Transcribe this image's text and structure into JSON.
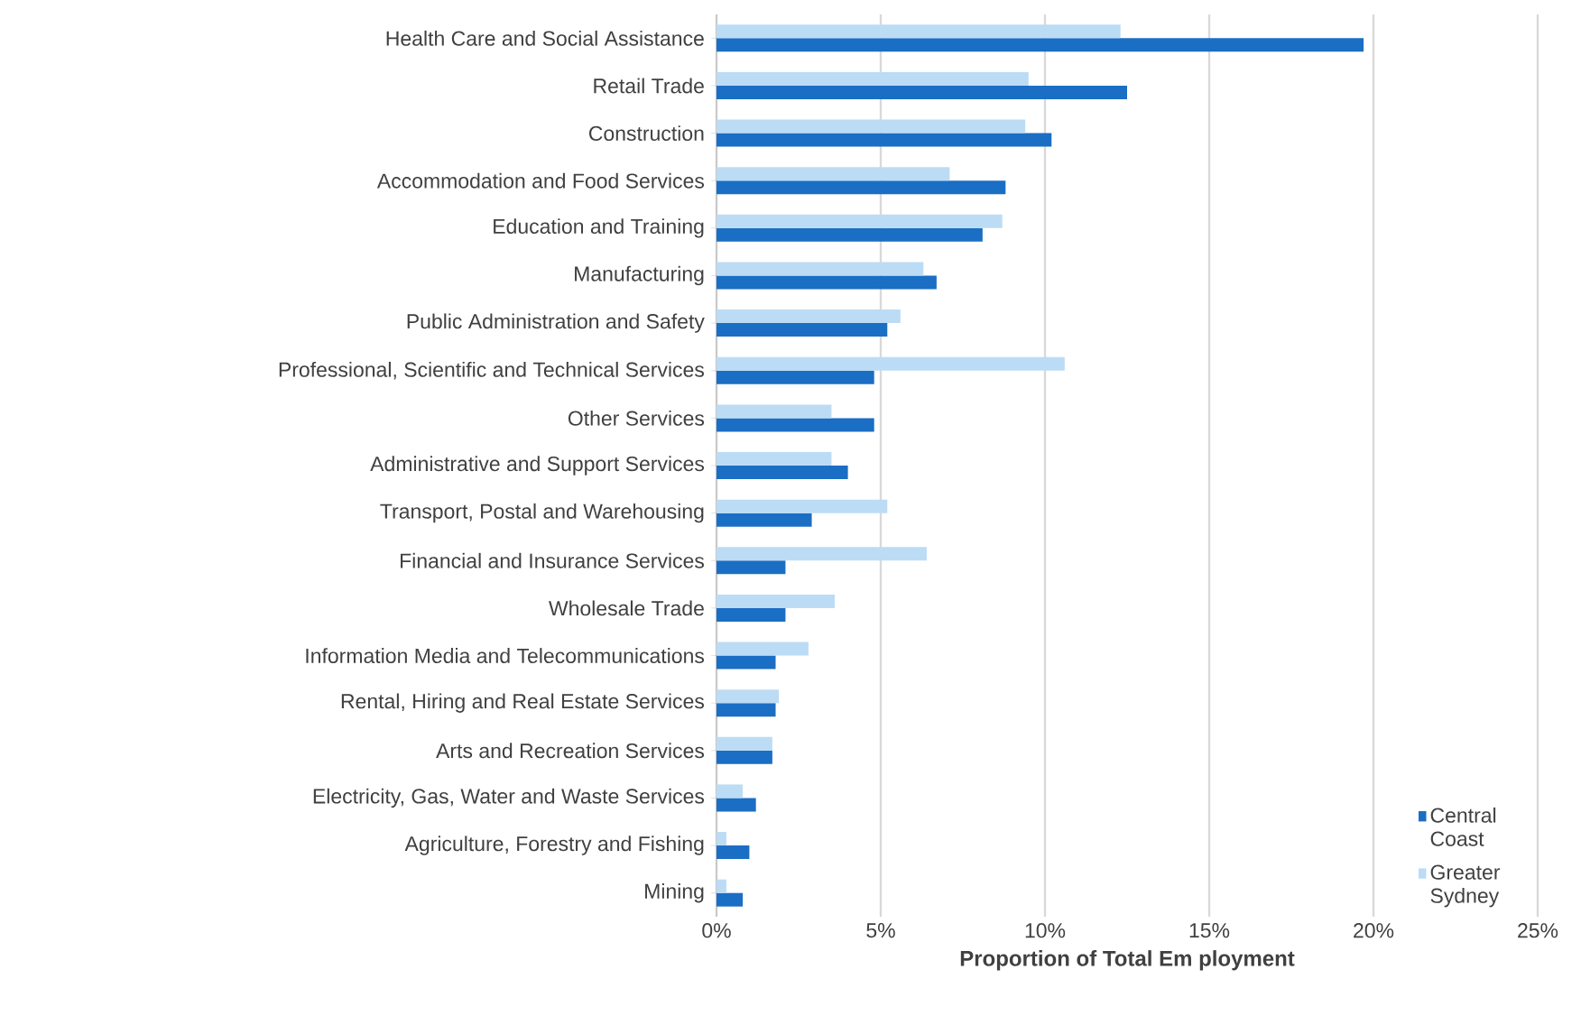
{
  "chart_data": {
    "type": "bar",
    "orientation": "horizontal",
    "xlabel": "Proportion of Total Em ployment",
    "categories": [
      "Health Care and Social Assistance",
      "Retail Trade",
      "Construction",
      "Accommodation and Food Services",
      "Education and Training",
      "Manufacturing",
      "Public Administration and Safety",
      "Professional, Scientific and Technical Services",
      "Other Services",
      "Administrative and Support Services",
      "Transport, Postal and Warehousing",
      "Financial and Insurance Services",
      "Wholesale Trade",
      "Information Media and Telecommunications",
      "Rental, Hiring and Real Estate Services",
      "Arts and Recreation Services",
      "Electricity, Gas, Water and Waste Services",
      "Agriculture, Forestry and Fishing",
      "Mining"
    ],
    "series": [
      {
        "name": "Central Coast",
        "color": "#1a6ec4",
        "values": [
          19.7,
          12.5,
          10.2,
          8.8,
          8.1,
          6.7,
          5.2,
          4.8,
          4.8,
          4.0,
          2.9,
          2.1,
          2.1,
          1.8,
          1.8,
          1.7,
          1.2,
          1.0,
          0.8
        ]
      },
      {
        "name": "Greater Sydney",
        "color": "#bcdcf5",
        "values": [
          12.3,
          9.5,
          9.4,
          7.1,
          8.7,
          6.3,
          5.6,
          10.6,
          3.5,
          3.5,
          5.2,
          6.4,
          3.6,
          2.8,
          1.9,
          1.7,
          0.8,
          0.3,
          0.3
        ]
      }
    ],
    "xlim": [
      0,
      25
    ],
    "xticks": [
      {
        "value": 0,
        "label": "0%"
      },
      {
        "value": 5,
        "label": "5%"
      },
      {
        "value": 10,
        "label": "10%"
      },
      {
        "value": 15,
        "label": "15%"
      },
      {
        "value": 20,
        "label": "20%"
      },
      {
        "value": 25,
        "label": "25%"
      }
    ],
    "grid": "x",
    "legend": "bottom right"
  }
}
